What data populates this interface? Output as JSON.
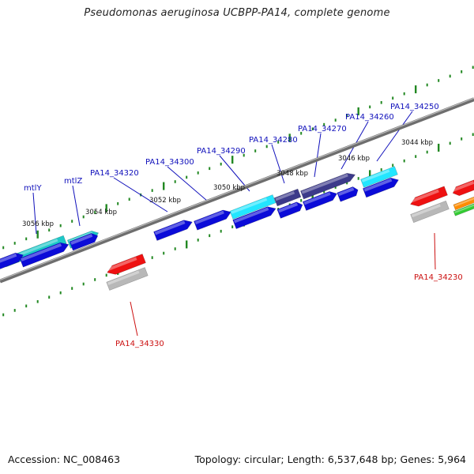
{
  "title": "Pseudomonas aeruginosa UCBPP-PA14, complete genome",
  "footer": {
    "accession": "Accession: NC_008463",
    "summary": "Topology: circular; Length: 6,537,648 bp; Genes: 5,964"
  },
  "colors": {
    "background": "#ffffff",
    "backbone": "#808080",
    "tick": "#228822",
    "forward_gene": "#0b0bd8",
    "forward_gene_light": "#22e6ff",
    "forward_gene_teal": "#1cc8c8",
    "forward_gene_dark": "#3c3a8a",
    "reverse_gene_red": "#ee1111",
    "reverse_gene_grey": "#b8b8b8",
    "gene_label_forward": "#1010bb",
    "gene_label_reverse": "#cc1111",
    "ruler_label": "#111111"
  },
  "ruler_labels": [
    {
      "id": "kbp-3044",
      "text": "3044 kbp"
    },
    {
      "id": "kbp-3046",
      "text": "3046 kbp"
    },
    {
      "id": "kbp-3048",
      "text": "3048 kbp"
    },
    {
      "id": "kbp-3050",
      "text": "3050 kbp"
    },
    {
      "id": "kbp-3052",
      "text": "3052 kbp"
    },
    {
      "id": "kbp-3054",
      "text": "3054 kbp"
    },
    {
      "id": "kbp-3056",
      "text": "3056 kbp"
    }
  ],
  "gene_labels": [
    {
      "id": "PA14_34250",
      "text": "PA14_34250"
    },
    {
      "id": "PA14_34260",
      "text": "PA14_34260"
    },
    {
      "id": "PA14_34270",
      "text": "PA14_34270"
    },
    {
      "id": "PA14_34280",
      "text": "PA14_34280"
    },
    {
      "id": "PA14_34290",
      "text": "PA14_34290"
    },
    {
      "id": "PA14_34300",
      "text": "PA14_34300"
    },
    {
      "id": "PA14_34320",
      "text": "PA14_34320"
    },
    {
      "id": "mtlZ",
      "text": "mtlZ"
    },
    {
      "id": "mtlY",
      "text": "mtlY"
    },
    {
      "id": "PA14_34230",
      "text": "PA14_34230"
    },
    {
      "id": "PA14_34330",
      "text": "PA14_34330"
    }
  ]
}
